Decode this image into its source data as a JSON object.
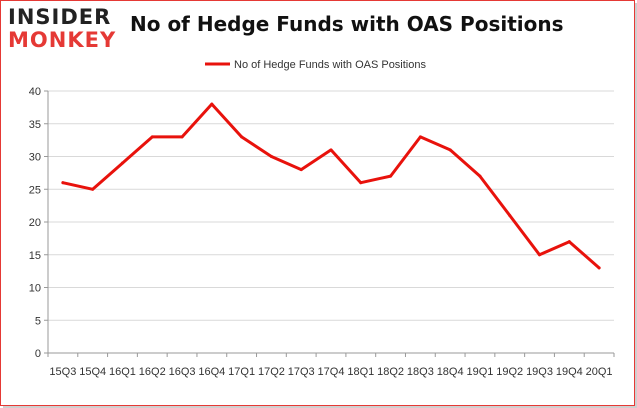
{
  "brand": {
    "logo_top": "INSIDER",
    "logo_bottom": "MONKEY"
  },
  "colors": {
    "accent": "#e53935",
    "grid": "#d9d9d9",
    "axis": "#999999"
  },
  "chart_data": {
    "type": "line",
    "title": "No of Hedge Funds with OAS Positions",
    "xlabel": "",
    "ylabel": "",
    "ylim": [
      0,
      40
    ],
    "yticks": [
      0,
      5,
      10,
      15,
      20,
      25,
      30,
      35,
      40
    ],
    "grid": true,
    "legend_position": "top-center",
    "categories": [
      "15Q3",
      "15Q4",
      "16Q1",
      "16Q2",
      "16Q3",
      "16Q4",
      "17Q1",
      "17Q2",
      "17Q3",
      "17Q4",
      "18Q1",
      "18Q2",
      "18Q3",
      "18Q4",
      "19Q1",
      "19Q2",
      "19Q3",
      "19Q4",
      "20Q1"
    ],
    "series": [
      {
        "name": "No of Hedge Funds with OAS Positions",
        "color": "#e8120c",
        "values": [
          26,
          25,
          29,
          33,
          33,
          38,
          33,
          30,
          28,
          31,
          26,
          27,
          33,
          31,
          27,
          21,
          15,
          17,
          13
        ]
      }
    ]
  }
}
